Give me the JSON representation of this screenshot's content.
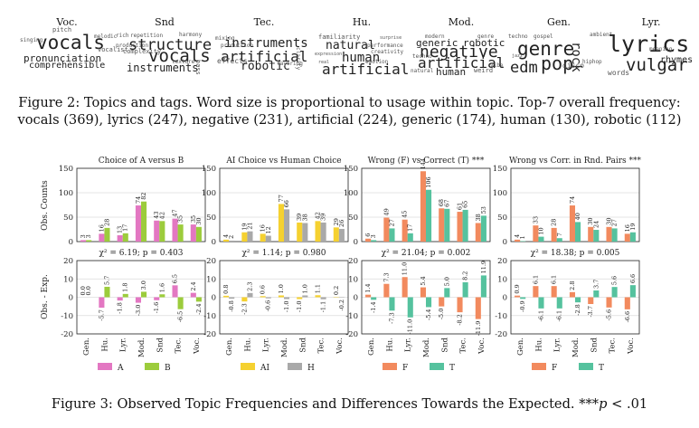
{
  "wordclouds": [
    {
      "name": "Voc.",
      "words": [
        "pitch",
        "vocals",
        "vocalist",
        "pronunciation",
        "comprehensible",
        "melodic",
        "singing"
      ]
    },
    {
      "name": "Snd",
      "words": [
        "rich",
        "repetition",
        "harmony",
        "structure",
        "vocals",
        "complexity",
        "instruments",
        "texture",
        "bass",
        "production"
      ]
    },
    {
      "name": "Tec.",
      "words": [
        "mixing",
        "instruments",
        "production",
        "artificial",
        "effects",
        "robotic",
        "layering",
        "clarity"
      ]
    },
    {
      "name": "Hu.",
      "words": [
        "familiarity",
        "surprise",
        "performance",
        "natural",
        "creativity",
        "expression",
        "human",
        "real",
        "artificial",
        "emotion"
      ]
    },
    {
      "name": "Mod.",
      "words": [
        "modern",
        "genre",
        "generic",
        "robotic",
        "negative",
        "techno",
        "artificial",
        "natural",
        "human",
        "weird",
        "vibe"
      ]
    },
    {
      "name": "Gen.",
      "words": [
        "techno",
        "gospel",
        "genre",
        "rock",
        "pop",
        "edm",
        "disco",
        "ambient",
        "jazz",
        "hiphop"
      ]
    },
    {
      "name": "Lyr.",
      "words": [
        "lyrics",
        "rhymes",
        "vulgar",
        "words",
        "meaning"
      ]
    }
  ],
  "caption2": {
    "label": "Figure 2:",
    "text_l1": " Topics and tags. Word size is proportional to usage within topic. Top-7 overall frequency:",
    "text_l2": "vocals (369), lyrics (247), negative (231), artificial (224), generic (174), human (130), robotic (112)"
  },
  "caption3": {
    "label": "Figure 3:",
    "text": " Observed Topic Frequencies and Differences Towards the Expected. ***",
    "p_sym": "p",
    "p_rest": " < .01"
  },
  "chart_data": [
    {
      "type": "bar",
      "title": "Choice of A versus B",
      "ylabel": "Obs. Counts",
      "ylim": [
        0,
        150
      ],
      "categories": [
        "Gen.",
        "Hu.",
        "Lyr.",
        "Mod.",
        "Snd",
        "Tec.",
        "Voc."
      ],
      "stat_label": "χ² = 6.19; p = 0.403",
      "series": [
        {
          "name": "A",
          "color": "#e377c2",
          "values": [
            3,
            16,
            13,
            74,
            43,
            47,
            35
          ]
        },
        {
          "name": "B",
          "color": "#9ccc3c",
          "values": [
            3,
            28,
            17,
            82,
            42,
            35,
            30
          ]
        }
      ],
      "diff": {
        "ylim": [
          -20,
          20
        ],
        "ylabel": "Obs. - Exp.",
        "series": [
          [
            0.0,
            -5.7,
            -1.8,
            -3.0,
            -1.6,
            6.5,
            2.4
          ],
          [
            -0.0,
            5.7,
            1.8,
            3.0,
            1.6,
            -6.5,
            -2.4
          ]
        ]
      },
      "legend": [
        "A",
        "B"
      ]
    },
    {
      "type": "bar",
      "title": "AI Choice vs Human Choice",
      "ylim": [
        0,
        150
      ],
      "categories": [
        "Gen.",
        "Hu.",
        "Lyr.",
        "Mod.",
        "Snd",
        "Tec.",
        "Voc."
      ],
      "stat_label": "χ² = 1.14; p = 0.980",
      "series": [
        {
          "name": "AI",
          "color": "#f5d130",
          "values": [
            4,
            19,
            16,
            77,
            39,
            42,
            29
          ]
        },
        {
          "name": "H",
          "color": "#a9a9a9",
          "values": [
            2,
            21,
            12,
            66,
            38,
            39,
            26
          ]
        }
      ],
      "diff": {
        "ylim": [
          -20,
          20
        ],
        "series": [
          [
            0.8,
            -2.3,
            0.6,
            1.0,
            -1.0,
            1.1,
            0.2
          ],
          [
            -0.8,
            2.3,
            -0.6,
            -1.0,
            1.0,
            -1.1,
            -0.2
          ]
        ]
      },
      "legend": [
        "AI",
        "H"
      ]
    },
    {
      "type": "bar",
      "title": "Wrong (F) vs Correct (T) ***",
      "ylim": [
        0,
        150
      ],
      "categories": [
        "Gen.",
        "Hu.",
        "Lyr.",
        "Mod.",
        "Snd",
        "Tec.",
        "Voc."
      ],
      "stat_label": "χ² = 21.04; p = 0.002",
      "series": [
        {
          "name": "F",
          "color": "#f28a5e",
          "values": [
            6,
            49,
            45,
            144,
            68,
            61,
            38
          ]
        },
        {
          "name": "T",
          "color": "#55c29e",
          "values": [
            3,
            27,
            17,
            106,
            67,
            65,
            53
          ]
        }
      ],
      "diff": {
        "ylim": [
          -20,
          20
        ],
        "series": [
          [
            1.4,
            7.3,
            11.0,
            5.4,
            -5.0,
            -8.2,
            -11.9
          ],
          [
            -1.4,
            -7.3,
            -11.0,
            -5.4,
            5.0,
            8.2,
            11.9
          ]
        ]
      },
      "legend": [
        "F",
        "T"
      ]
    },
    {
      "type": "bar",
      "title": "Wrong vs Corr. in Rnd. Pairs ***",
      "ylim": [
        0,
        150
      ],
      "categories": [
        "Gen.",
        "Hu.",
        "Lyr.",
        "Mod.",
        "Snd",
        "Tec.",
        "Voc."
      ],
      "stat_label": "χ² = 18.38; p = 0.005",
      "series": [
        {
          "name": "F",
          "color": "#f28a5e",
          "values": [
            4,
            33,
            28,
            74,
            30,
            30,
            16
          ]
        },
        {
          "name": "T",
          "color": "#55c29e",
          "values": [
            1,
            10,
            7,
            40,
            24,
            27,
            19
          ]
        }
      ],
      "diff": {
        "ylim": [
          -20,
          20
        ],
        "series": [
          [
            0.9,
            6.1,
            6.1,
            2.8,
            -3.7,
            -5.6,
            -6.6
          ],
          [
            -0.9,
            -6.1,
            -6.1,
            -2.8,
            3.7,
            5.6,
            6.6
          ]
        ]
      },
      "legend": [
        "F",
        "T"
      ]
    }
  ]
}
